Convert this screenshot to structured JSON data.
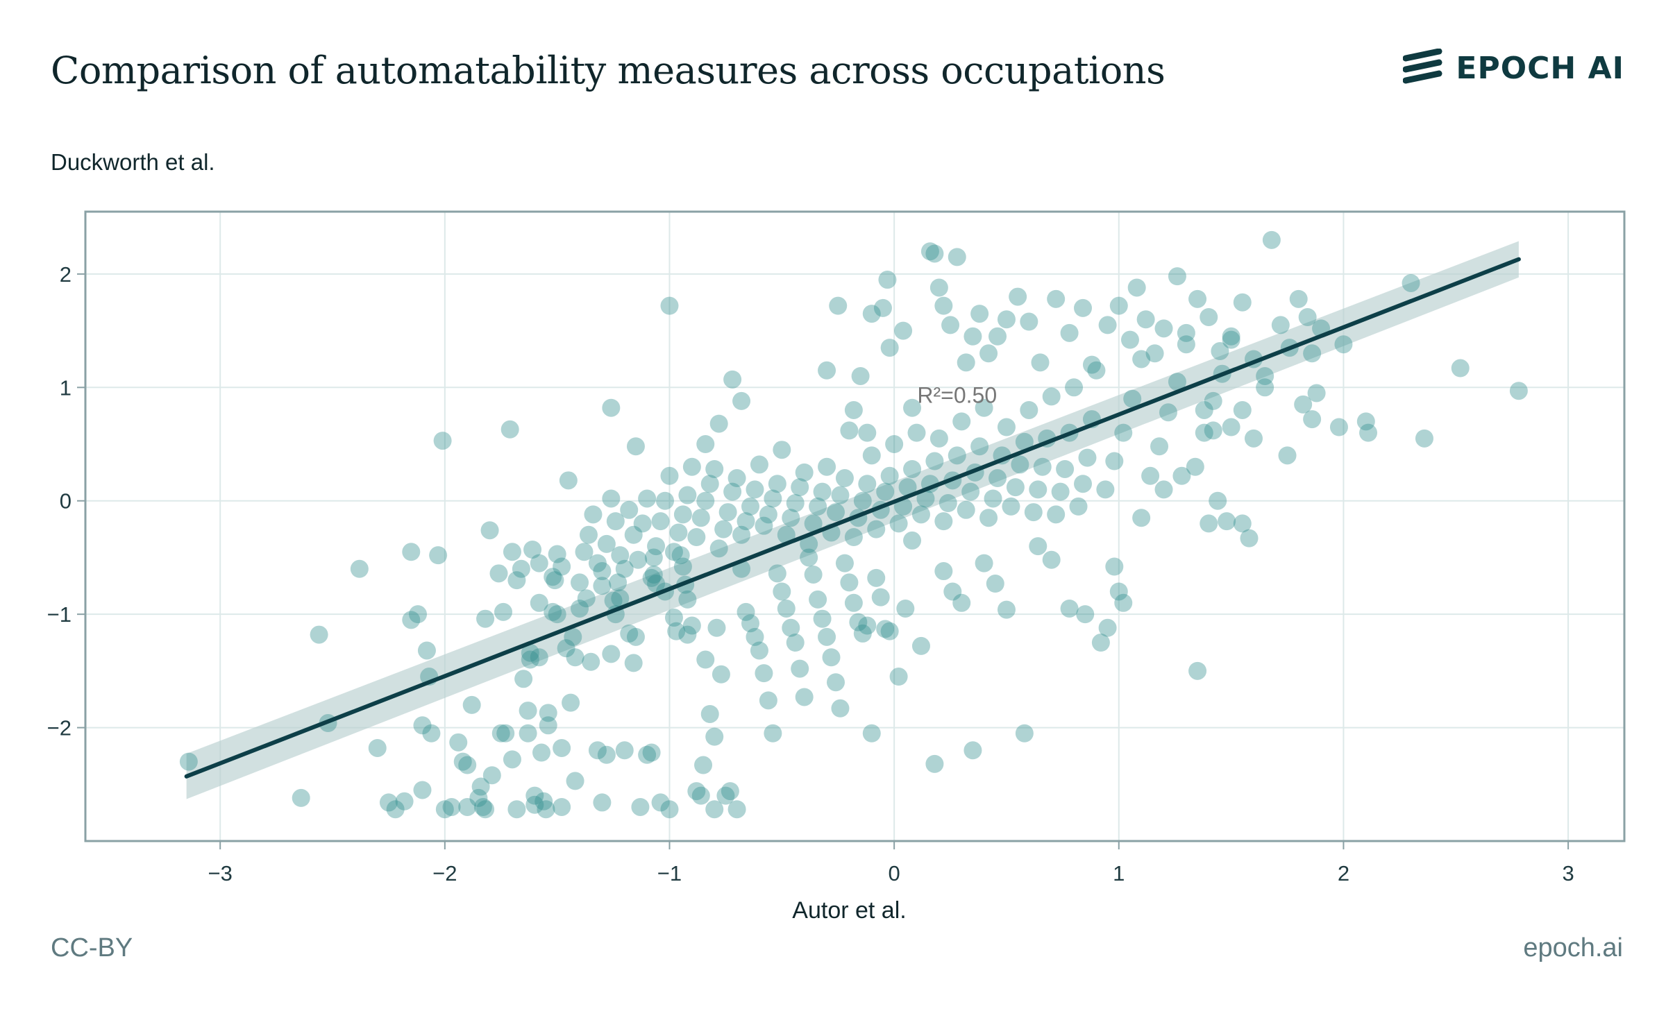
{
  "header": {
    "title": "Comparison of automatability measures across occupations",
    "brand": "EPOCH AI"
  },
  "footer": {
    "license": "CC-BY",
    "site": "epoch.ai"
  },
  "colors": {
    "point": "#2e8b8b",
    "line": "#0d3f48",
    "band": "#b9cfd0",
    "grid": "#dde9e9",
    "frame": "#8aa1a5"
  },
  "chart_data": {
    "type": "scatter",
    "title": "Comparison of automatability measures across occupations",
    "xlabel": "Autor et al.",
    "ylabel": "Duckworth et al.",
    "xlim": [
      -3.6,
      3.25
    ],
    "ylim": [
      -3.0,
      2.55
    ],
    "xticks": [
      -3,
      -2,
      -1,
      0,
      1,
      2,
      3
    ],
    "yticks": [
      -2,
      -1,
      0,
      1,
      2
    ],
    "xtick_labels": [
      "−3",
      "−2",
      "−1",
      "0",
      "1",
      "2",
      "3"
    ],
    "ytick_labels": [
      "−2",
      "−1",
      "0",
      "1",
      "2"
    ],
    "grid": true,
    "annotation": {
      "text": "R²=0.50",
      "x": 0.28,
      "y": 0.93
    },
    "regression": {
      "x": [
        -3.15,
        2.78
      ],
      "y": [
        -2.43,
        2.13
      ],
      "ci_halfwidth": [
        0.2,
        0.16
      ]
    },
    "points": [
      [
        -3.14,
        -2.3
      ],
      [
        -2.64,
        -2.62
      ],
      [
        -2.56,
        -1.18
      ],
      [
        -2.52,
        -1.96
      ],
      [
        -2.38,
        -0.6
      ],
      [
        -2.3,
        -2.18
      ],
      [
        -2.25,
        -2.66
      ],
      [
        -2.22,
        -2.72
      ],
      [
        -2.18,
        -2.65
      ],
      [
        -2.15,
        -0.45
      ],
      [
        -2.15,
        -1.05
      ],
      [
        -2.1,
        -2.55
      ],
      [
        -2.1,
        -1.98
      ],
      [
        -2.08,
        -1.32
      ],
      [
        -2.07,
        -1.55
      ],
      [
        -2.06,
        -2.05
      ],
      [
        -2.03,
        -0.48
      ],
      [
        -2.01,
        0.53
      ],
      [
        -2.0,
        -2.72
      ],
      [
        -1.97,
        -2.7
      ],
      [
        -1.94,
        -2.13
      ],
      [
        -1.92,
        -2.3
      ],
      [
        -1.9,
        -2.33
      ],
      [
        -1.9,
        -2.7
      ],
      [
        -1.88,
        -1.8
      ],
      [
        -1.85,
        -2.62
      ],
      [
        -1.84,
        -2.52
      ],
      [
        -1.83,
        -2.7
      ],
      [
        -1.82,
        -2.72
      ],
      [
        -1.8,
        -0.26
      ],
      [
        -1.79,
        -2.42
      ],
      [
        -1.76,
        -0.64
      ],
      [
        -1.75,
        -2.05
      ],
      [
        -1.73,
        -2.05
      ],
      [
        -1.71,
        0.63
      ],
      [
        -1.7,
        -2.28
      ],
      [
        -1.68,
        -2.72
      ],
      [
        -1.66,
        -0.6
      ],
      [
        -1.65,
        -1.57
      ],
      [
        -1.63,
        -1.85
      ],
      [
        -1.63,
        -2.05
      ],
      [
        -1.62,
        -1.4
      ],
      [
        -1.61,
        -0.43
      ],
      [
        -1.6,
        -2.6
      ],
      [
        -1.6,
        -2.68
      ],
      [
        -1.58,
        -0.55
      ],
      [
        -1.57,
        -2.22
      ],
      [
        -1.56,
        -2.65
      ],
      [
        -1.55,
        -2.72
      ],
      [
        -1.54,
        -1.87
      ],
      [
        -1.54,
        -1.98
      ],
      [
        -1.52,
        -0.67
      ],
      [
        -1.51,
        -0.7
      ],
      [
        -1.5,
        -0.47
      ],
      [
        -1.5,
        -1.0
      ],
      [
        -1.48,
        -2.7
      ],
      [
        -1.46,
        -1.3
      ],
      [
        -1.44,
        -1.78
      ],
      [
        -1.42,
        -1.38
      ],
      [
        -1.42,
        -2.47
      ],
      [
        -1.4,
        -0.95
      ],
      [
        -1.37,
        -0.86
      ],
      [
        -1.35,
        -1.42
      ],
      [
        -1.32,
        -2.2
      ],
      [
        -1.3,
        -0.75
      ],
      [
        -1.3,
        -2.66
      ],
      [
        -1.28,
        -2.24
      ],
      [
        -1.26,
        -1.35
      ],
      [
        -1.25,
        -0.88
      ],
      [
        -1.23,
        -0.72
      ],
      [
        -1.22,
        -0.86
      ],
      [
        -1.2,
        -2.2
      ],
      [
        -1.18,
        -1.17
      ],
      [
        -1.16,
        -1.43
      ],
      [
        -1.15,
        -1.2
      ],
      [
        -1.15,
        0.48
      ],
      [
        -1.13,
        -2.7
      ],
      [
        -1.1,
        -2.24
      ],
      [
        -1.08,
        -2.22
      ],
      [
        -1.07,
        -0.5
      ],
      [
        -1.07,
        -0.65
      ],
      [
        -1.06,
        -0.73
      ],
      [
        -1.04,
        -2.66
      ],
      [
        -1.02,
        -0.8
      ],
      [
        -1.0,
        -2.72
      ],
      [
        -0.98,
        -1.03
      ],
      [
        -0.97,
        -1.15
      ],
      [
        -0.95,
        -0.48
      ],
      [
        -0.94,
        -0.58
      ],
      [
        -0.93,
        -0.74
      ],
      [
        -0.92,
        -0.87
      ],
      [
        -0.92,
        -1.18
      ],
      [
        -0.9,
        -1.1
      ],
      [
        -0.88,
        -2.56
      ],
      [
        -0.86,
        -2.6
      ],
      [
        -0.85,
        -2.33
      ],
      [
        -0.84,
        -1.4
      ],
      [
        -0.82,
        -1.88
      ],
      [
        -0.8,
        -2.08
      ],
      [
        -0.8,
        -2.72
      ],
      [
        -0.79,
        -1.12
      ],
      [
        -0.77,
        -1.53
      ],
      [
        -0.75,
        -2.6
      ],
      [
        -0.73,
        -2.56
      ],
      [
        -0.7,
        -2.72
      ],
      [
        -0.68,
        -0.6
      ],
      [
        -0.66,
        -0.98
      ],
      [
        -0.64,
        -1.08
      ],
      [
        -0.62,
        -1.2
      ],
      [
        -0.6,
        -1.32
      ],
      [
        -0.58,
        -1.52
      ],
      [
        -0.56,
        -1.76
      ],
      [
        -0.54,
        -2.05
      ],
      [
        -0.52,
        -0.64
      ],
      [
        -0.5,
        -0.8
      ],
      [
        -0.48,
        -0.95
      ],
      [
        -0.46,
        -1.12
      ],
      [
        -0.44,
        -1.25
      ],
      [
        -0.42,
        -1.48
      ],
      [
        -0.4,
        -1.73
      ],
      [
        -0.38,
        -0.5
      ],
      [
        -0.36,
        -0.65
      ],
      [
        -0.34,
        -0.87
      ],
      [
        -0.32,
        -1.04
      ],
      [
        -0.3,
        -1.2
      ],
      [
        -0.28,
        -1.38
      ],
      [
        -0.26,
        -1.6
      ],
      [
        -0.24,
        -1.83
      ],
      [
        -0.22,
        -0.55
      ],
      [
        -0.2,
        -0.72
      ],
      [
        -0.18,
        -0.9
      ],
      [
        -0.16,
        -1.07
      ],
      [
        -0.14,
        -1.17
      ],
      [
        -0.12,
        -1.1
      ],
      [
        -0.1,
        -2.05
      ],
      [
        -0.08,
        -0.68
      ],
      [
        -0.06,
        -0.85
      ],
      [
        -0.04,
        -1.13
      ],
      [
        -0.02,
        -1.15
      ],
      [
        0.02,
        -1.55
      ],
      [
        0.05,
        -0.95
      ],
      [
        0.08,
        -0.35
      ],
      [
        0.12,
        -1.28
      ],
      [
        0.18,
        -2.32
      ],
      [
        0.22,
        -0.62
      ],
      [
        0.26,
        -0.8
      ],
      [
        0.3,
        -0.9
      ],
      [
        0.35,
        -2.2
      ],
      [
        0.4,
        -0.55
      ],
      [
        0.45,
        -0.73
      ],
      [
        0.5,
        -0.96
      ],
      [
        0.58,
        -2.05
      ],
      [
        0.64,
        -0.4
      ],
      [
        0.7,
        -0.52
      ],
      [
        0.78,
        -0.95
      ],
      [
        0.85,
        -1.0
      ],
      [
        0.92,
        -1.25
      ],
      [
        0.95,
        -1.12
      ],
      [
        0.98,
        -0.58
      ],
      [
        1.0,
        -0.8
      ],
      [
        1.02,
        -0.9
      ],
      [
        1.35,
        -1.5
      ],
      [
        -1.74,
        -0.98
      ],
      [
        -1.7,
        -0.45
      ],
      [
        -1.68,
        -0.7
      ],
      [
        -1.62,
        -1.34
      ],
      [
        -1.58,
        -0.9
      ],
      [
        -1.48,
        -0.58
      ],
      [
        -1.45,
        0.18
      ],
      [
        -1.43,
        -1.2
      ],
      [
        -1.4,
        -0.72
      ],
      [
        -1.38,
        -0.45
      ],
      [
        -1.36,
        -0.3
      ],
      [
        -1.34,
        -0.12
      ],
      [
        -1.32,
        -0.55
      ],
      [
        -1.3,
        -0.62
      ],
      [
        -1.28,
        -0.38
      ],
      [
        -1.26,
        0.02
      ],
      [
        -1.24,
        -0.18
      ],
      [
        -1.22,
        -0.48
      ],
      [
        -1.2,
        -0.6
      ],
      [
        -1.18,
        -0.08
      ],
      [
        -1.16,
        -0.3
      ],
      [
        -1.14,
        -0.52
      ],
      [
        -1.12,
        -0.2
      ],
      [
        -1.1,
        0.02
      ],
      [
        -1.08,
        -0.68
      ],
      [
        -1.06,
        -0.4
      ],
      [
        -1.04,
        -0.18
      ],
      [
        -1.02,
        0.0
      ],
      [
        -1.0,
        0.22
      ],
      [
        -0.98,
        -0.45
      ],
      [
        -0.96,
        -0.28
      ],
      [
        -0.94,
        -0.12
      ],
      [
        -0.92,
        0.05
      ],
      [
        -0.9,
        0.3
      ],
      [
        -0.88,
        -0.32
      ],
      [
        -0.86,
        -0.15
      ],
      [
        -0.84,
        0.0
      ],
      [
        -0.82,
        0.15
      ],
      [
        -0.8,
        0.28
      ],
      [
        -0.78,
        -0.42
      ],
      [
        -0.76,
        -0.25
      ],
      [
        -0.74,
        -0.1
      ],
      [
        -0.72,
        0.08
      ],
      [
        -0.7,
        0.2
      ],
      [
        -0.68,
        -0.3
      ],
      [
        -0.66,
        -0.18
      ],
      [
        -0.64,
        -0.05
      ],
      [
        -0.62,
        0.1
      ],
      [
        -0.6,
        0.32
      ],
      [
        -0.58,
        -0.22
      ],
      [
        -0.56,
        -0.12
      ],
      [
        -0.54,
        0.02
      ],
      [
        -0.52,
        0.15
      ],
      [
        -0.5,
        0.45
      ],
      [
        -0.48,
        -0.3
      ],
      [
        -0.46,
        -0.15
      ],
      [
        -0.44,
        -0.02
      ],
      [
        -0.42,
        0.12
      ],
      [
        -0.4,
        0.25
      ],
      [
        -0.38,
        -0.38
      ],
      [
        -0.36,
        -0.2
      ],
      [
        -0.34,
        -0.05
      ],
      [
        -0.32,
        0.08
      ],
      [
        -0.3,
        0.3
      ],
      [
        -0.28,
        -0.28
      ],
      [
        -0.26,
        -0.1
      ],
      [
        -0.24,
        0.05
      ],
      [
        -0.22,
        0.2
      ],
      [
        -0.2,
        0.62
      ],
      [
        -0.18,
        -0.32
      ],
      [
        -0.16,
        -0.15
      ],
      [
        -0.14,
        0.0
      ],
      [
        -0.12,
        0.15
      ],
      [
        -0.1,
        0.4
      ],
      [
        -0.08,
        -0.25
      ],
      [
        -0.06,
        -0.08
      ],
      [
        -0.04,
        0.08
      ],
      [
        -0.02,
        0.22
      ],
      [
        0.0,
        0.5
      ],
      [
        0.02,
        -0.2
      ],
      [
        0.04,
        -0.05
      ],
      [
        0.06,
        0.12
      ],
      [
        0.08,
        0.28
      ],
      [
        0.1,
        0.6
      ],
      [
        0.12,
        -0.12
      ],
      [
        0.14,
        0.02
      ],
      [
        0.16,
        0.15
      ],
      [
        0.18,
        0.35
      ],
      [
        0.2,
        0.55
      ],
      [
        0.22,
        -0.18
      ],
      [
        0.24,
        -0.02
      ],
      [
        0.26,
        0.18
      ],
      [
        0.28,
        0.4
      ],
      [
        0.3,
        0.7
      ],
      [
        0.32,
        -0.08
      ],
      [
        0.34,
        0.08
      ],
      [
        0.36,
        0.25
      ],
      [
        0.38,
        0.48
      ],
      [
        0.4,
        0.82
      ],
      [
        0.42,
        -0.15
      ],
      [
        0.44,
        0.02
      ],
      [
        0.46,
        0.2
      ],
      [
        0.48,
        0.4
      ],
      [
        0.5,
        0.65
      ],
      [
        0.52,
        -0.05
      ],
      [
        0.54,
        0.12
      ],
      [
        0.56,
        0.32
      ],
      [
        0.58,
        0.52
      ],
      [
        0.6,
        0.8
      ],
      [
        0.62,
        -0.1
      ],
      [
        0.64,
        0.1
      ],
      [
        0.66,
        0.3
      ],
      [
        0.68,
        0.55
      ],
      [
        0.7,
        0.92
      ],
      [
        0.72,
        -0.12
      ],
      [
        0.74,
        0.08
      ],
      [
        0.76,
        0.28
      ],
      [
        0.78,
        0.6
      ],
      [
        0.8,
        1.0
      ],
      [
        0.82,
        -0.05
      ],
      [
        0.84,
        0.15
      ],
      [
        0.86,
        0.38
      ],
      [
        0.88,
        0.72
      ],
      [
        0.9,
        1.15
      ],
      [
        0.94,
        0.1
      ],
      [
        0.98,
        0.35
      ],
      [
        1.02,
        0.6
      ],
      [
        1.06,
        0.9
      ],
      [
        1.1,
        1.25
      ],
      [
        1.14,
        0.22
      ],
      [
        1.18,
        0.48
      ],
      [
        1.22,
        0.78
      ],
      [
        1.26,
        1.05
      ],
      [
        1.3,
        1.38
      ],
      [
        1.34,
        0.3
      ],
      [
        1.38,
        0.6
      ],
      [
        1.42,
        0.88
      ],
      [
        1.46,
        1.12
      ],
      [
        1.5,
        1.45
      ],
      [
        -0.84,
        0.5
      ],
      [
        -0.78,
        0.68
      ],
      [
        -0.72,
        1.07
      ],
      [
        -0.68,
        0.88
      ],
      [
        -0.3,
        1.15
      ],
      [
        -0.25,
        1.72
      ],
      [
        -0.18,
        0.8
      ],
      [
        -0.15,
        1.1
      ],
      [
        -0.12,
        0.6
      ],
      [
        -0.1,
        1.65
      ],
      [
        -0.05,
        1.7
      ],
      [
        -0.03,
        1.95
      ],
      [
        -0.02,
        1.35
      ],
      [
        0.04,
        1.5
      ],
      [
        0.08,
        0.82
      ],
      [
        0.16,
        2.2
      ],
      [
        0.18,
        2.18
      ],
      [
        0.2,
        1.88
      ],
      [
        0.22,
        1.72
      ],
      [
        0.25,
        1.55
      ],
      [
        0.28,
        2.15
      ],
      [
        0.32,
        1.22
      ],
      [
        0.35,
        1.45
      ],
      [
        0.38,
        1.65
      ],
      [
        0.42,
        1.3
      ],
      [
        0.46,
        1.45
      ],
      [
        0.5,
        1.6
      ],
      [
        0.55,
        1.8
      ],
      [
        0.6,
        1.58
      ],
      [
        0.65,
        1.22
      ],
      [
        0.72,
        1.78
      ],
      [
        0.78,
        1.48
      ],
      [
        0.84,
        1.7
      ],
      [
        0.88,
        1.2
      ],
      [
        0.95,
        1.55
      ],
      [
        1.0,
        1.72
      ],
      [
        1.05,
        1.42
      ],
      [
        1.08,
        1.88
      ],
      [
        1.12,
        1.6
      ],
      [
        1.16,
        1.3
      ],
      [
        1.2,
        1.52
      ],
      [
        1.26,
        1.98
      ],
      [
        1.3,
        1.48
      ],
      [
        1.35,
        1.78
      ],
      [
        1.4,
        1.62
      ],
      [
        1.45,
        1.32
      ],
      [
        1.5,
        1.42
      ],
      [
        1.55,
        1.75
      ],
      [
        1.6,
        1.25
      ],
      [
        1.65,
        1.1
      ],
      [
        1.68,
        2.3
      ],
      [
        1.72,
        1.55
      ],
      [
        1.76,
        1.35
      ],
      [
        1.8,
        1.78
      ],
      [
        1.84,
        1.62
      ],
      [
        1.86,
        1.3
      ],
      [
        1.9,
        1.52
      ],
      [
        2.0,
        1.38
      ],
      [
        2.3,
        1.92
      ],
      [
        2.52,
        1.17
      ],
      [
        2.78,
        0.97
      ],
      [
        1.38,
        0.8
      ],
      [
        1.42,
        0.62
      ],
      [
        1.5,
        0.65
      ],
      [
        1.55,
        0.8
      ],
      [
        1.6,
        0.55
      ],
      [
        1.65,
        1.0
      ],
      [
        1.75,
        0.4
      ],
      [
        1.82,
        0.85
      ],
      [
        1.86,
        0.72
      ],
      [
        1.88,
        0.95
      ],
      [
        1.98,
        0.65
      ],
      [
        2.1,
        0.7
      ],
      [
        2.11,
        0.6
      ],
      [
        2.36,
        0.55
      ],
      [
        1.4,
        -0.2
      ],
      [
        1.44,
        0.0
      ],
      [
        1.48,
        -0.18
      ],
      [
        1.55,
        -0.2
      ],
      [
        1.58,
        -0.33
      ],
      [
        1.2,
        0.1
      ],
      [
        1.1,
        -0.15
      ],
      [
        1.28,
        0.22
      ],
      [
        -1.0,
        1.72
      ],
      [
        -1.26,
        0.82
      ],
      [
        -1.24,
        -1.0
      ],
      [
        -1.58,
        -1.38
      ],
      [
        -1.52,
        -0.98
      ],
      [
        -1.82,
        -1.04
      ],
      [
        -1.48,
        -2.18
      ],
      [
        -2.12,
        -1.0
      ]
    ]
  }
}
